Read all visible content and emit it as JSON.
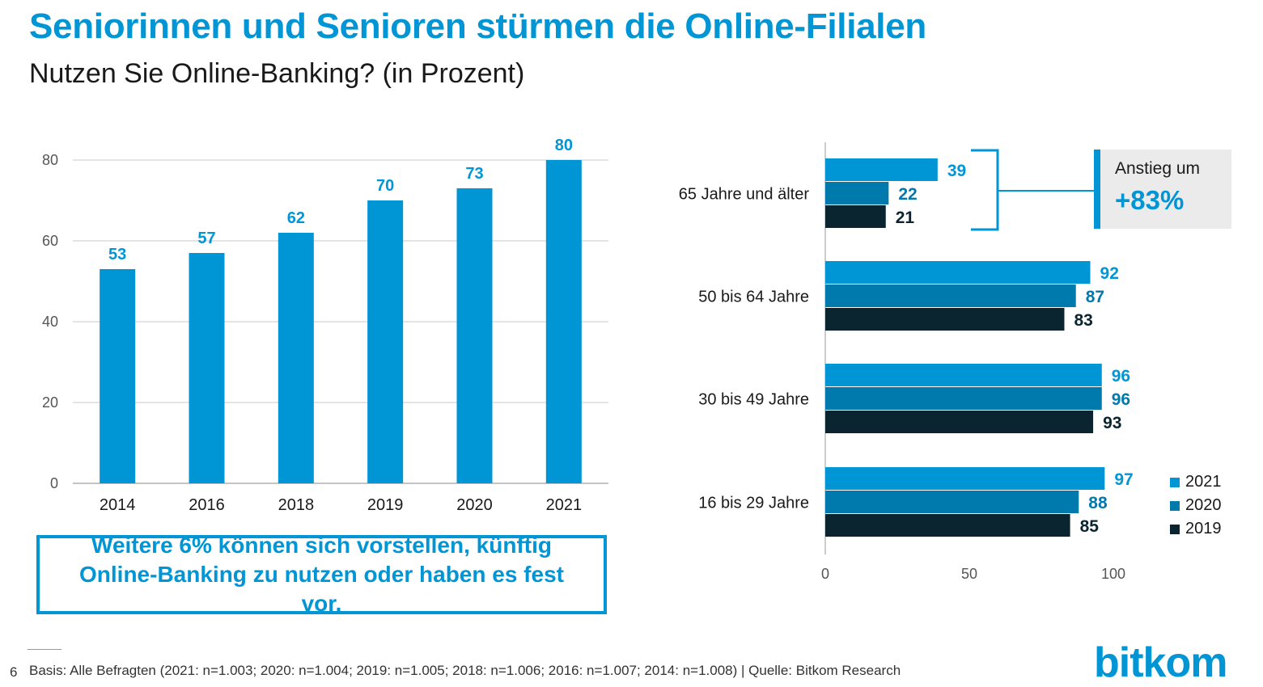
{
  "title": "Seniorinnen und Senioren stürmen die Online-Filialen",
  "subtitle": "Nutzen Sie Online-Banking? (in Prozent)",
  "note": "Weitere 6% können sich vorstellen, künftig Online-Banking zu nutzen oder haben es fest vor.",
  "anstieg": {
    "label": "Anstieg um",
    "value": "+83%"
  },
  "footer": {
    "page_number": "6",
    "source": "Basis: Alle Befragten (2021: n=1.003; 2020: n=1.004; 2019: n=1.005; 2018: n=1.006; 2016: n=1.007; 2014: n=1.008) | Quelle: Bitkom Research"
  },
  "logo": "bitkom",
  "colors": {
    "c2021": "#0096d6",
    "c2020": "#0079ad",
    "c2019": "#0b2530",
    "accent": "#0096d6",
    "grid": "#c8c8c8"
  },
  "chart_data": [
    {
      "type": "bar",
      "categories": [
        "2014",
        "2016",
        "2018",
        "2019",
        "2020",
        "2021"
      ],
      "values": [
        53,
        57,
        62,
        70,
        73,
        80
      ],
      "ylim": [
        0,
        80
      ],
      "yticks": [
        0,
        20,
        40,
        60,
        80
      ],
      "grid": true
    },
    {
      "type": "bar",
      "orientation": "horizontal",
      "categories": [
        "65 Jahre und älter",
        "50 bis 64 Jahre",
        "30 bis 49 Jahre",
        "16 bis 29 Jahre"
      ],
      "series": [
        {
          "name": "2021",
          "values": [
            39,
            92,
            96,
            97
          ]
        },
        {
          "name": "2020",
          "values": [
            22,
            87,
            96,
            88
          ]
        },
        {
          "name": "2019",
          "values": [
            21,
            83,
            93,
            85
          ]
        }
      ],
      "xlim": [
        0,
        100
      ],
      "xticks": [
        0,
        50,
        100
      ],
      "legend": "bottom-right"
    }
  ]
}
